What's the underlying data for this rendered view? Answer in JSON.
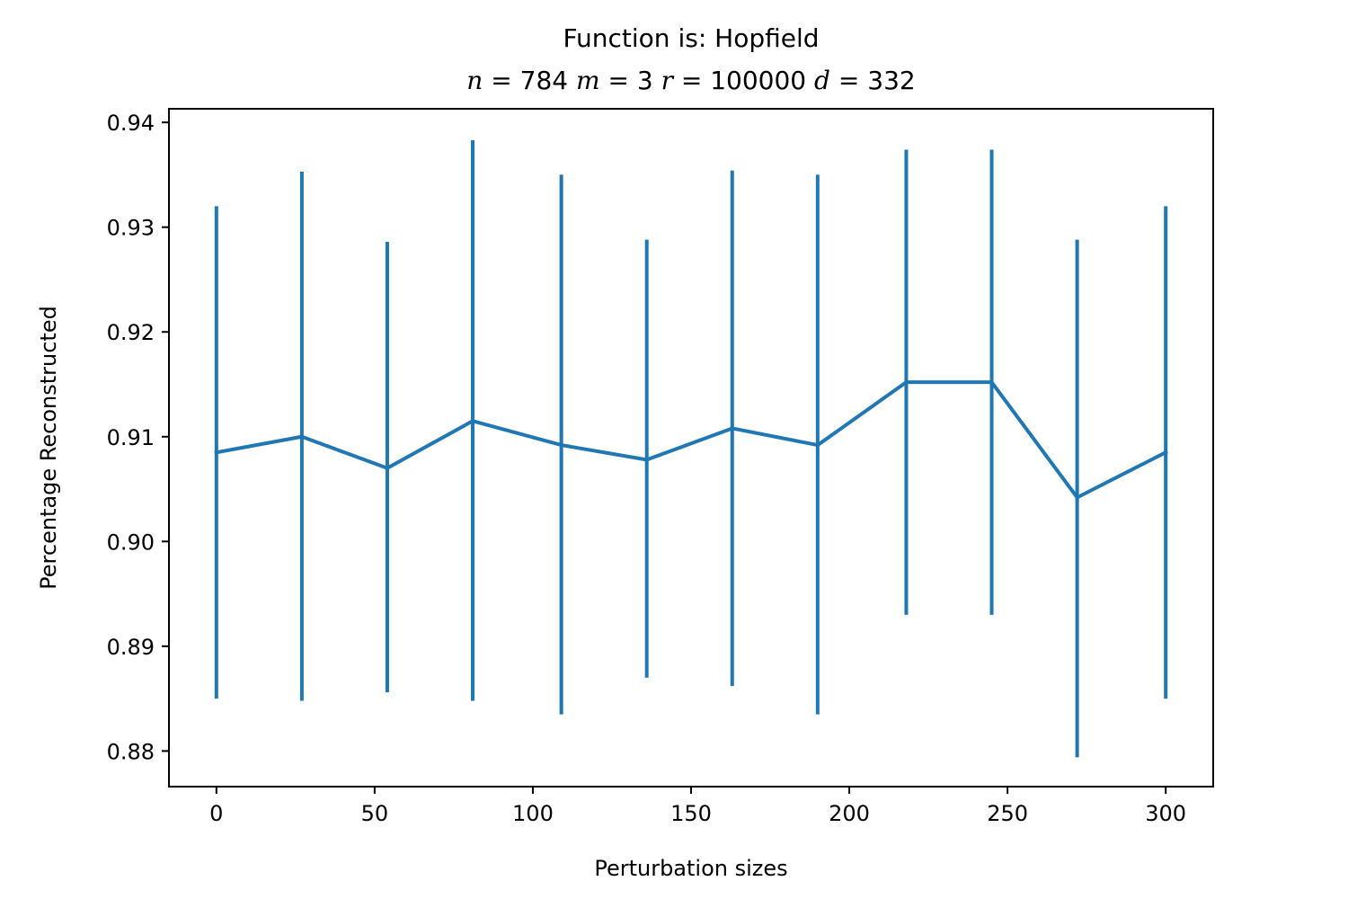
{
  "chart_data": {
    "type": "line",
    "title": "Function is: Hopfield",
    "subtitle": {
      "n_label": "n",
      "n_value": "784",
      "m_label": "m",
      "m_value": "3",
      "r_label": "r",
      "r_value": "100000",
      "d_label": "d",
      "d_value": "332",
      "equals": "="
    },
    "xlabel": "Perturbation sizes",
    "ylabel": "Percentage Reconstructed",
    "xlim": [
      -15,
      315
    ],
    "ylim": [
      0.8766,
      0.9413
    ],
    "xticks": [
      0,
      50,
      100,
      150,
      200,
      250,
      300
    ],
    "xtick_labels": [
      "0",
      "50",
      "100",
      "150",
      "200",
      "250",
      "300"
    ],
    "yticks": [
      0.88,
      0.89,
      0.9,
      0.91,
      0.92,
      0.93,
      0.94
    ],
    "ytick_labels": [
      "0.88",
      "0.89",
      "0.90",
      "0.91",
      "0.92",
      "0.93",
      "0.94"
    ],
    "grid": false,
    "legend": "none",
    "series": [
      {
        "color": "#1f77b4",
        "x": [
          0,
          27,
          54,
          81,
          109,
          136,
          163,
          190,
          218,
          245,
          272,
          300
        ],
        "y": [
          0.9085,
          0.91,
          0.907,
          0.9115,
          0.9092,
          0.9078,
          0.9108,
          0.9092,
          0.9152,
          0.9152,
          0.9042,
          0.9085
        ],
        "yerr_low": [
          0.885,
          0.8848,
          0.8856,
          0.8848,
          0.8835,
          0.887,
          0.8862,
          0.8835,
          0.893,
          0.893,
          0.8794,
          0.885
        ],
        "yerr_high": [
          0.932,
          0.9353,
          0.9286,
          0.9383,
          0.935,
          0.9288,
          0.9354,
          0.935,
          0.9374,
          0.9374,
          0.9288,
          0.932
        ]
      }
    ]
  }
}
